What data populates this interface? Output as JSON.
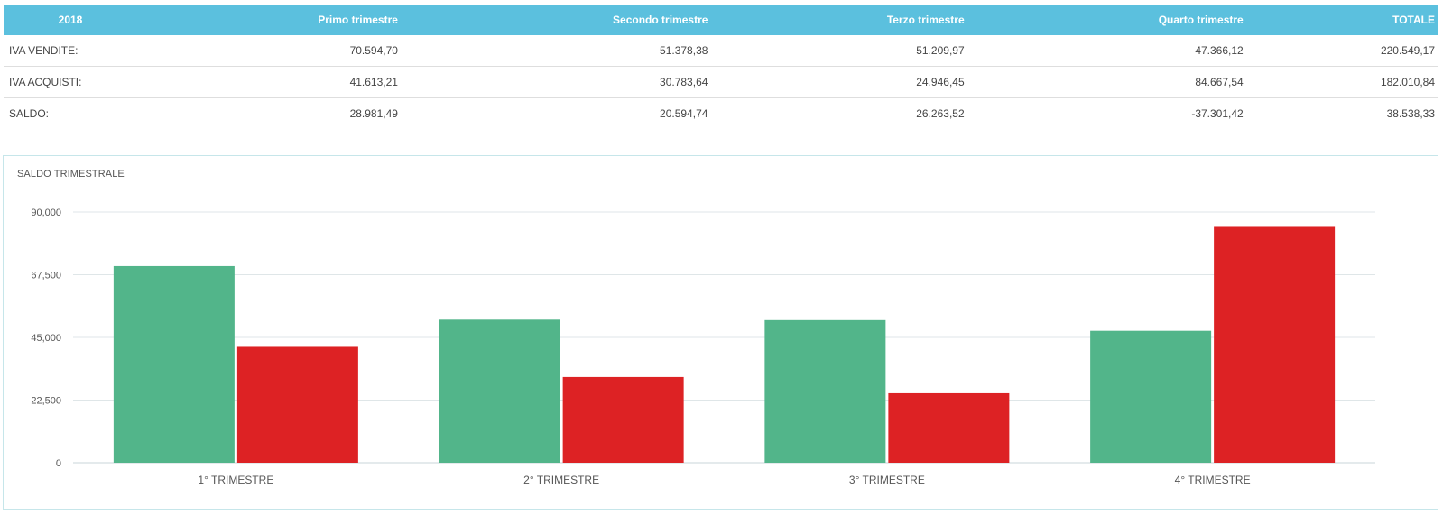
{
  "table": {
    "headers": [
      "2018",
      "Primo trimestre",
      "Secondo trimestre",
      "Terzo trimestre",
      "Quarto trimestre",
      "TOTALE"
    ],
    "rows": [
      [
        "IVA VENDITE:",
        "70.594,70",
        "51.378,38",
        "51.209,97",
        "47.366,12",
        "220.549,17"
      ],
      [
        "IVA ACQUISTI:",
        "41.613,21",
        "30.783,64",
        "24.946,45",
        "84.667,54",
        "182.010,84"
      ],
      [
        "SALDO:",
        "28.981,49",
        "20.594,74",
        "26.263,52",
        "-37.301,42",
        "38.538,33"
      ]
    ]
  },
  "panel": {
    "title": "SALDO TRIMESTRALE"
  },
  "chart_data": {
    "type": "bar",
    "title": "SALDO TRIMESTRALE",
    "categories": [
      "1° TRIMESTRE",
      "2° TRIMESTRE",
      "3° TRIMESTRE",
      "4° TRIMESTRE"
    ],
    "series": [
      {
        "color": "#52b58a",
        "values": [
          70594.7,
          51378.38,
          51209.97,
          47366.12
        ]
      },
      {
        "color": "#dd2224",
        "values": [
          41613.21,
          30783.64,
          24946.45,
          84667.54
        ]
      }
    ],
    "ylim": [
      0,
      90000
    ],
    "yticks": [
      0,
      22500,
      45000,
      67500,
      90000
    ],
    "ytick_labels": [
      "0",
      "22,500",
      "45,000",
      "67,500",
      "90,000"
    ],
    "grid": true,
    "legend": "none"
  }
}
